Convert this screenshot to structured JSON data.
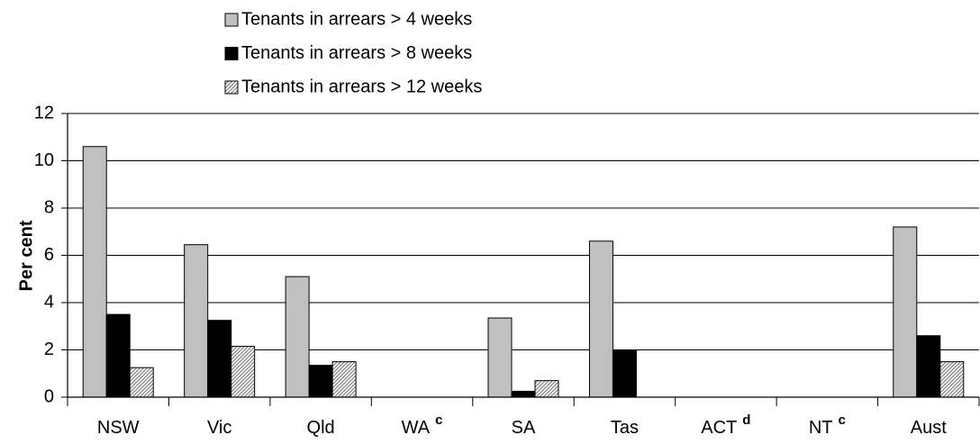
{
  "chart_data": {
    "type": "bar",
    "y_label": "Per cent",
    "categories": [
      "NSW",
      "Vic",
      "Qld",
      "WA",
      "SA",
      "Tas",
      "ACT",
      "NT",
      "Aust"
    ],
    "category_superscripts": [
      null,
      null,
      null,
      "c",
      null,
      null,
      "d",
      "c",
      null
    ],
    "series": [
      {
        "name": "Tenants in arrears > 4 weeks",
        "color": "#c0c0c0",
        "values": [
          10.6,
          6.45,
          5.1,
          null,
          3.35,
          6.6,
          null,
          null,
          7.2
        ]
      },
      {
        "name": "Tenants in arrears > 8 weeks",
        "color": "#000000",
        "values": [
          3.5,
          3.25,
          1.35,
          null,
          0.25,
          2.0,
          null,
          null,
          2.6
        ]
      },
      {
        "name": "Tenants in arrears > 12 weeks",
        "color": "#c0c0c0",
        "pattern": "hatch",
        "values": [
          1.25,
          2.15,
          1.5,
          null,
          0.7,
          null,
          null,
          null,
          1.5
        ]
      }
    ],
    "ylim": [
      0,
      12
    ],
    "yticks": [
      0,
      2,
      4,
      6,
      8,
      10,
      12
    ],
    "grid": true,
    "legend": "top"
  }
}
